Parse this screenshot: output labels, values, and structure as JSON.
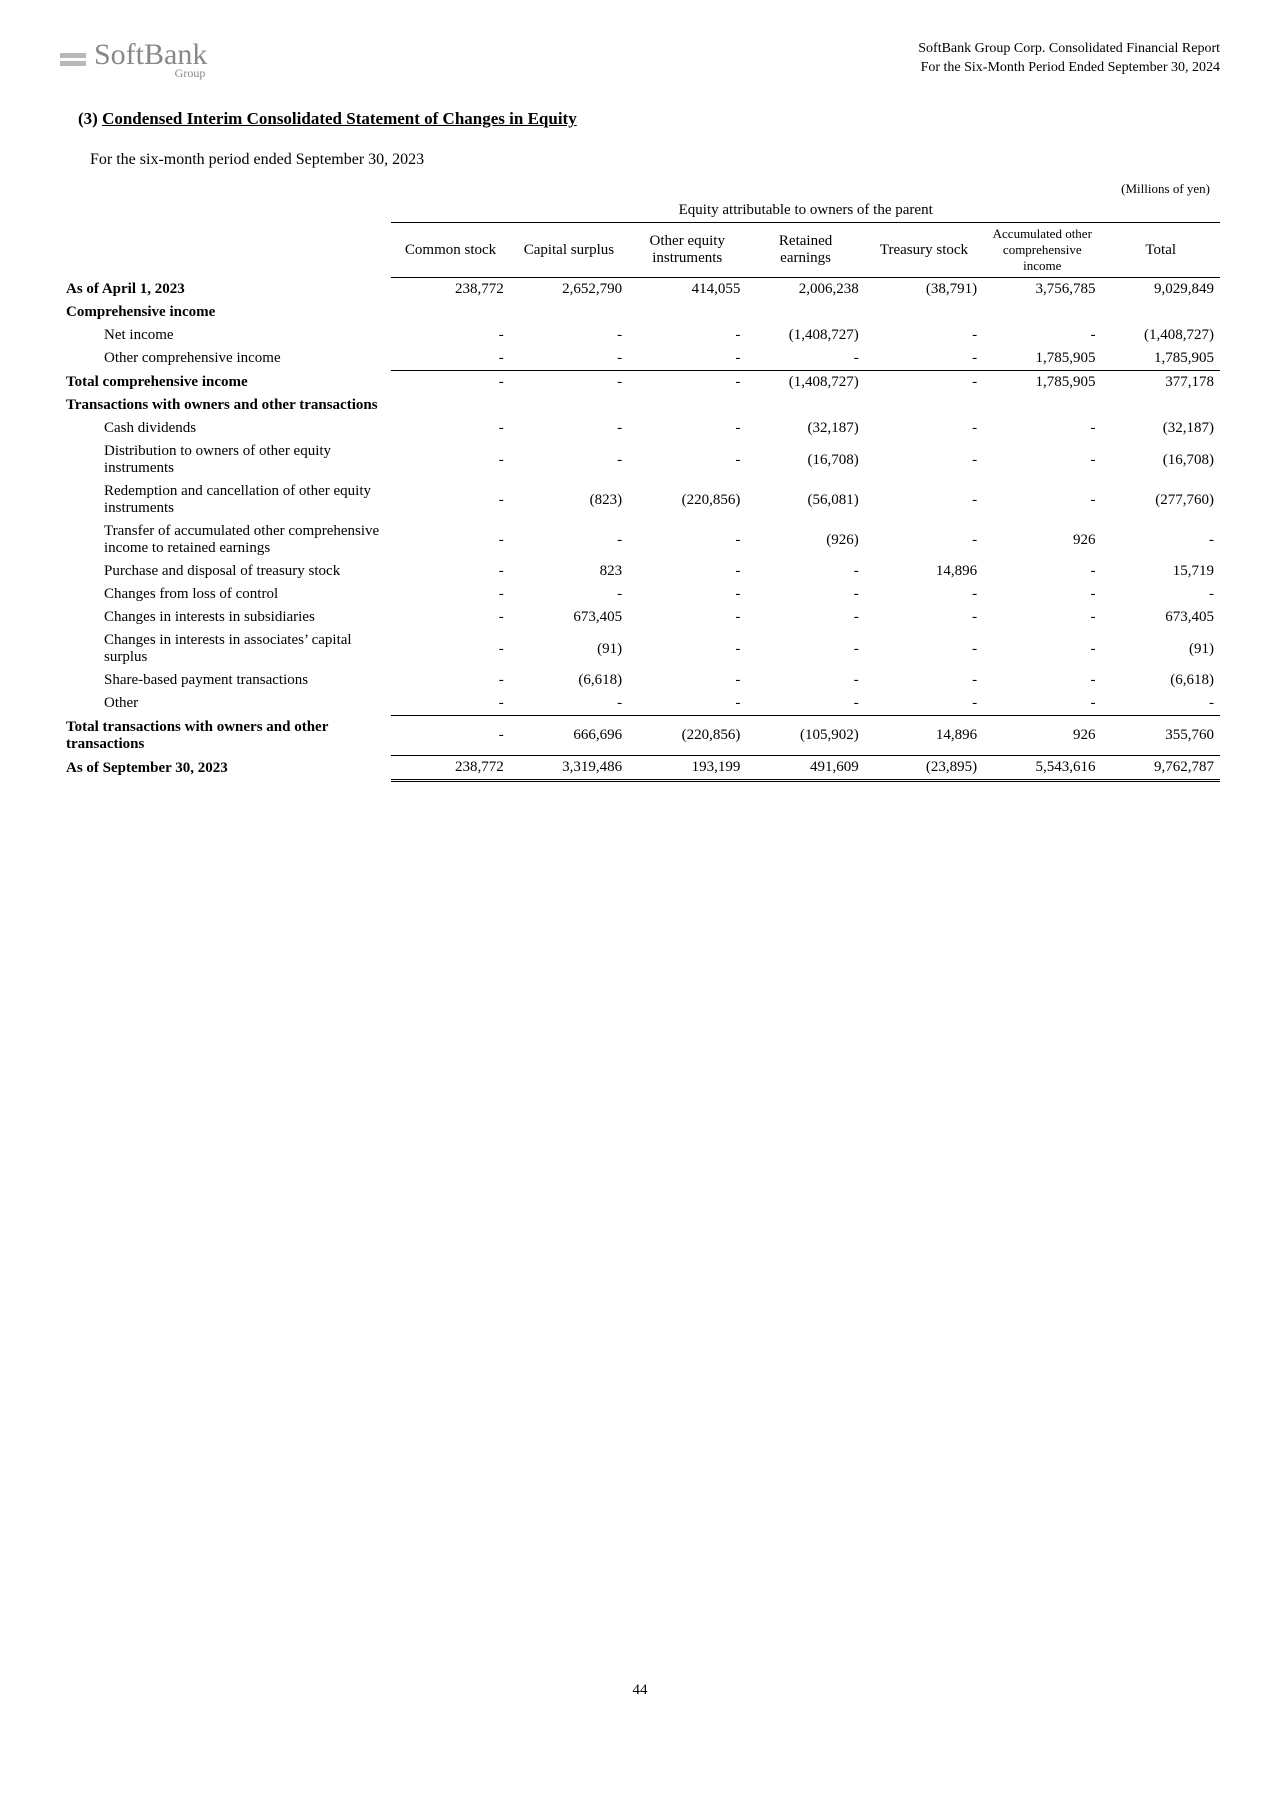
{
  "header": {
    "company_logo_text": "SoftBank",
    "company_logo_sub": "Group",
    "right_line1": "SoftBank Group Corp. Consolidated Financial Report",
    "right_line2": "For the Six-Month Period Ended September 30, 2024"
  },
  "section": {
    "number": "(3)",
    "title": "Condensed Interim Consolidated Statement of Changes in Equity",
    "period_text": "For the six-month period ended September 30, 2023",
    "unit_text": "(Millions of yen)"
  },
  "table": {
    "span_header": "Equity attributable to owners of the parent",
    "columns": {
      "c1": "Common stock",
      "c2": "Capital surplus",
      "c3": "Other equity instruments",
      "c4": "Retained earnings",
      "c5": "Treasury stock",
      "c6": "Accumulated other comprehensive income",
      "c7": "Total"
    },
    "rows": [
      {
        "label": "As of April 1, 2023",
        "bold": true,
        "vals": [
          "238,772",
          "2,652,790",
          "414,055",
          "2,006,238",
          "(38,791)",
          "3,756,785",
          "9,029,849"
        ]
      },
      {
        "label": "Comprehensive income",
        "bold": true,
        "vals": [
          "",
          "",
          "",
          "",
          "",
          "",
          ""
        ]
      },
      {
        "label": "Net income",
        "indent": 1,
        "vals": [
          "-",
          "-",
          "-",
          "(1,408,727)",
          "-",
          "-",
          "(1,408,727)"
        ]
      },
      {
        "label": "Other comprehensive income",
        "indent": 1,
        "vals": [
          "-",
          "-",
          "-",
          "-",
          "-",
          "1,785,905",
          "1,785,905"
        ],
        "underline": true
      },
      {
        "label": "Total comprehensive income",
        "bold": true,
        "vals": [
          "-",
          "-",
          "-",
          "(1,408,727)",
          "-",
          "1,785,905",
          "377,178"
        ]
      },
      {
        "label": "Transactions with owners and other transactions",
        "bold": true,
        "vals": [
          "",
          "",
          "",
          "",
          "",
          "",
          ""
        ]
      },
      {
        "label": "Cash dividends",
        "indent": 1,
        "vals": [
          "-",
          "-",
          "-",
          "(32,187)",
          "-",
          "-",
          "(32,187)"
        ]
      },
      {
        "label": "Distribution to owners of other equity instruments",
        "indent": 1,
        "vals": [
          "-",
          "-",
          "-",
          "(16,708)",
          "-",
          "-",
          "(16,708)"
        ]
      },
      {
        "label": "Redemption and cancellation of other equity instruments",
        "indent": 1,
        "vals": [
          "-",
          "(823)",
          "(220,856)",
          "(56,081)",
          "-",
          "-",
          "(277,760)"
        ]
      },
      {
        "label": "Transfer of accumulated other comprehensive income to retained earnings",
        "indent": 1,
        "vals": [
          "-",
          "-",
          "-",
          "(926)",
          "-",
          "926",
          "-"
        ]
      },
      {
        "label": "Purchase and disposal of treasury stock",
        "indent": 1,
        "vals": [
          "-",
          "823",
          "-",
          "-",
          "14,896",
          "-",
          "15,719"
        ]
      },
      {
        "label": "Changes from loss of control",
        "indent": 1,
        "vals": [
          "-",
          "-",
          "-",
          "-",
          "-",
          "-",
          "-"
        ]
      },
      {
        "label": "Changes in interests in subsidiaries",
        "indent": 1,
        "vals": [
          "-",
          "673,405",
          "-",
          "-",
          "-",
          "-",
          "673,405"
        ]
      },
      {
        "label": "Changes in interests in associates’ capital surplus",
        "indent": 1,
        "vals": [
          "-",
          "(91)",
          "-",
          "-",
          "-",
          "-",
          "(91)"
        ]
      },
      {
        "label": "Share-based payment transactions",
        "indent": 1,
        "vals": [
          "-",
          "(6,618)",
          "-",
          "-",
          "-",
          "-",
          "(6,618)"
        ]
      },
      {
        "label": "Other",
        "indent": 1,
        "vals": [
          "-",
          "-",
          "-",
          "-",
          "-",
          "-",
          "-"
        ],
        "underline": true
      },
      {
        "label": "Total transactions with owners and other transactions",
        "bold": true,
        "vals": [
          "-",
          "666,696",
          "(220,856)",
          "(105,902)",
          "14,896",
          "926",
          "355,760"
        ],
        "underline": true
      },
      {
        "label": "As of September 30, 2023",
        "bold": true,
        "vals": [
          "238,772",
          "3,319,486",
          "193,199",
          "491,609",
          "(23,895)",
          "5,543,616",
          "9,762,787"
        ],
        "double": true
      }
    ]
  },
  "page_number": "44"
}
